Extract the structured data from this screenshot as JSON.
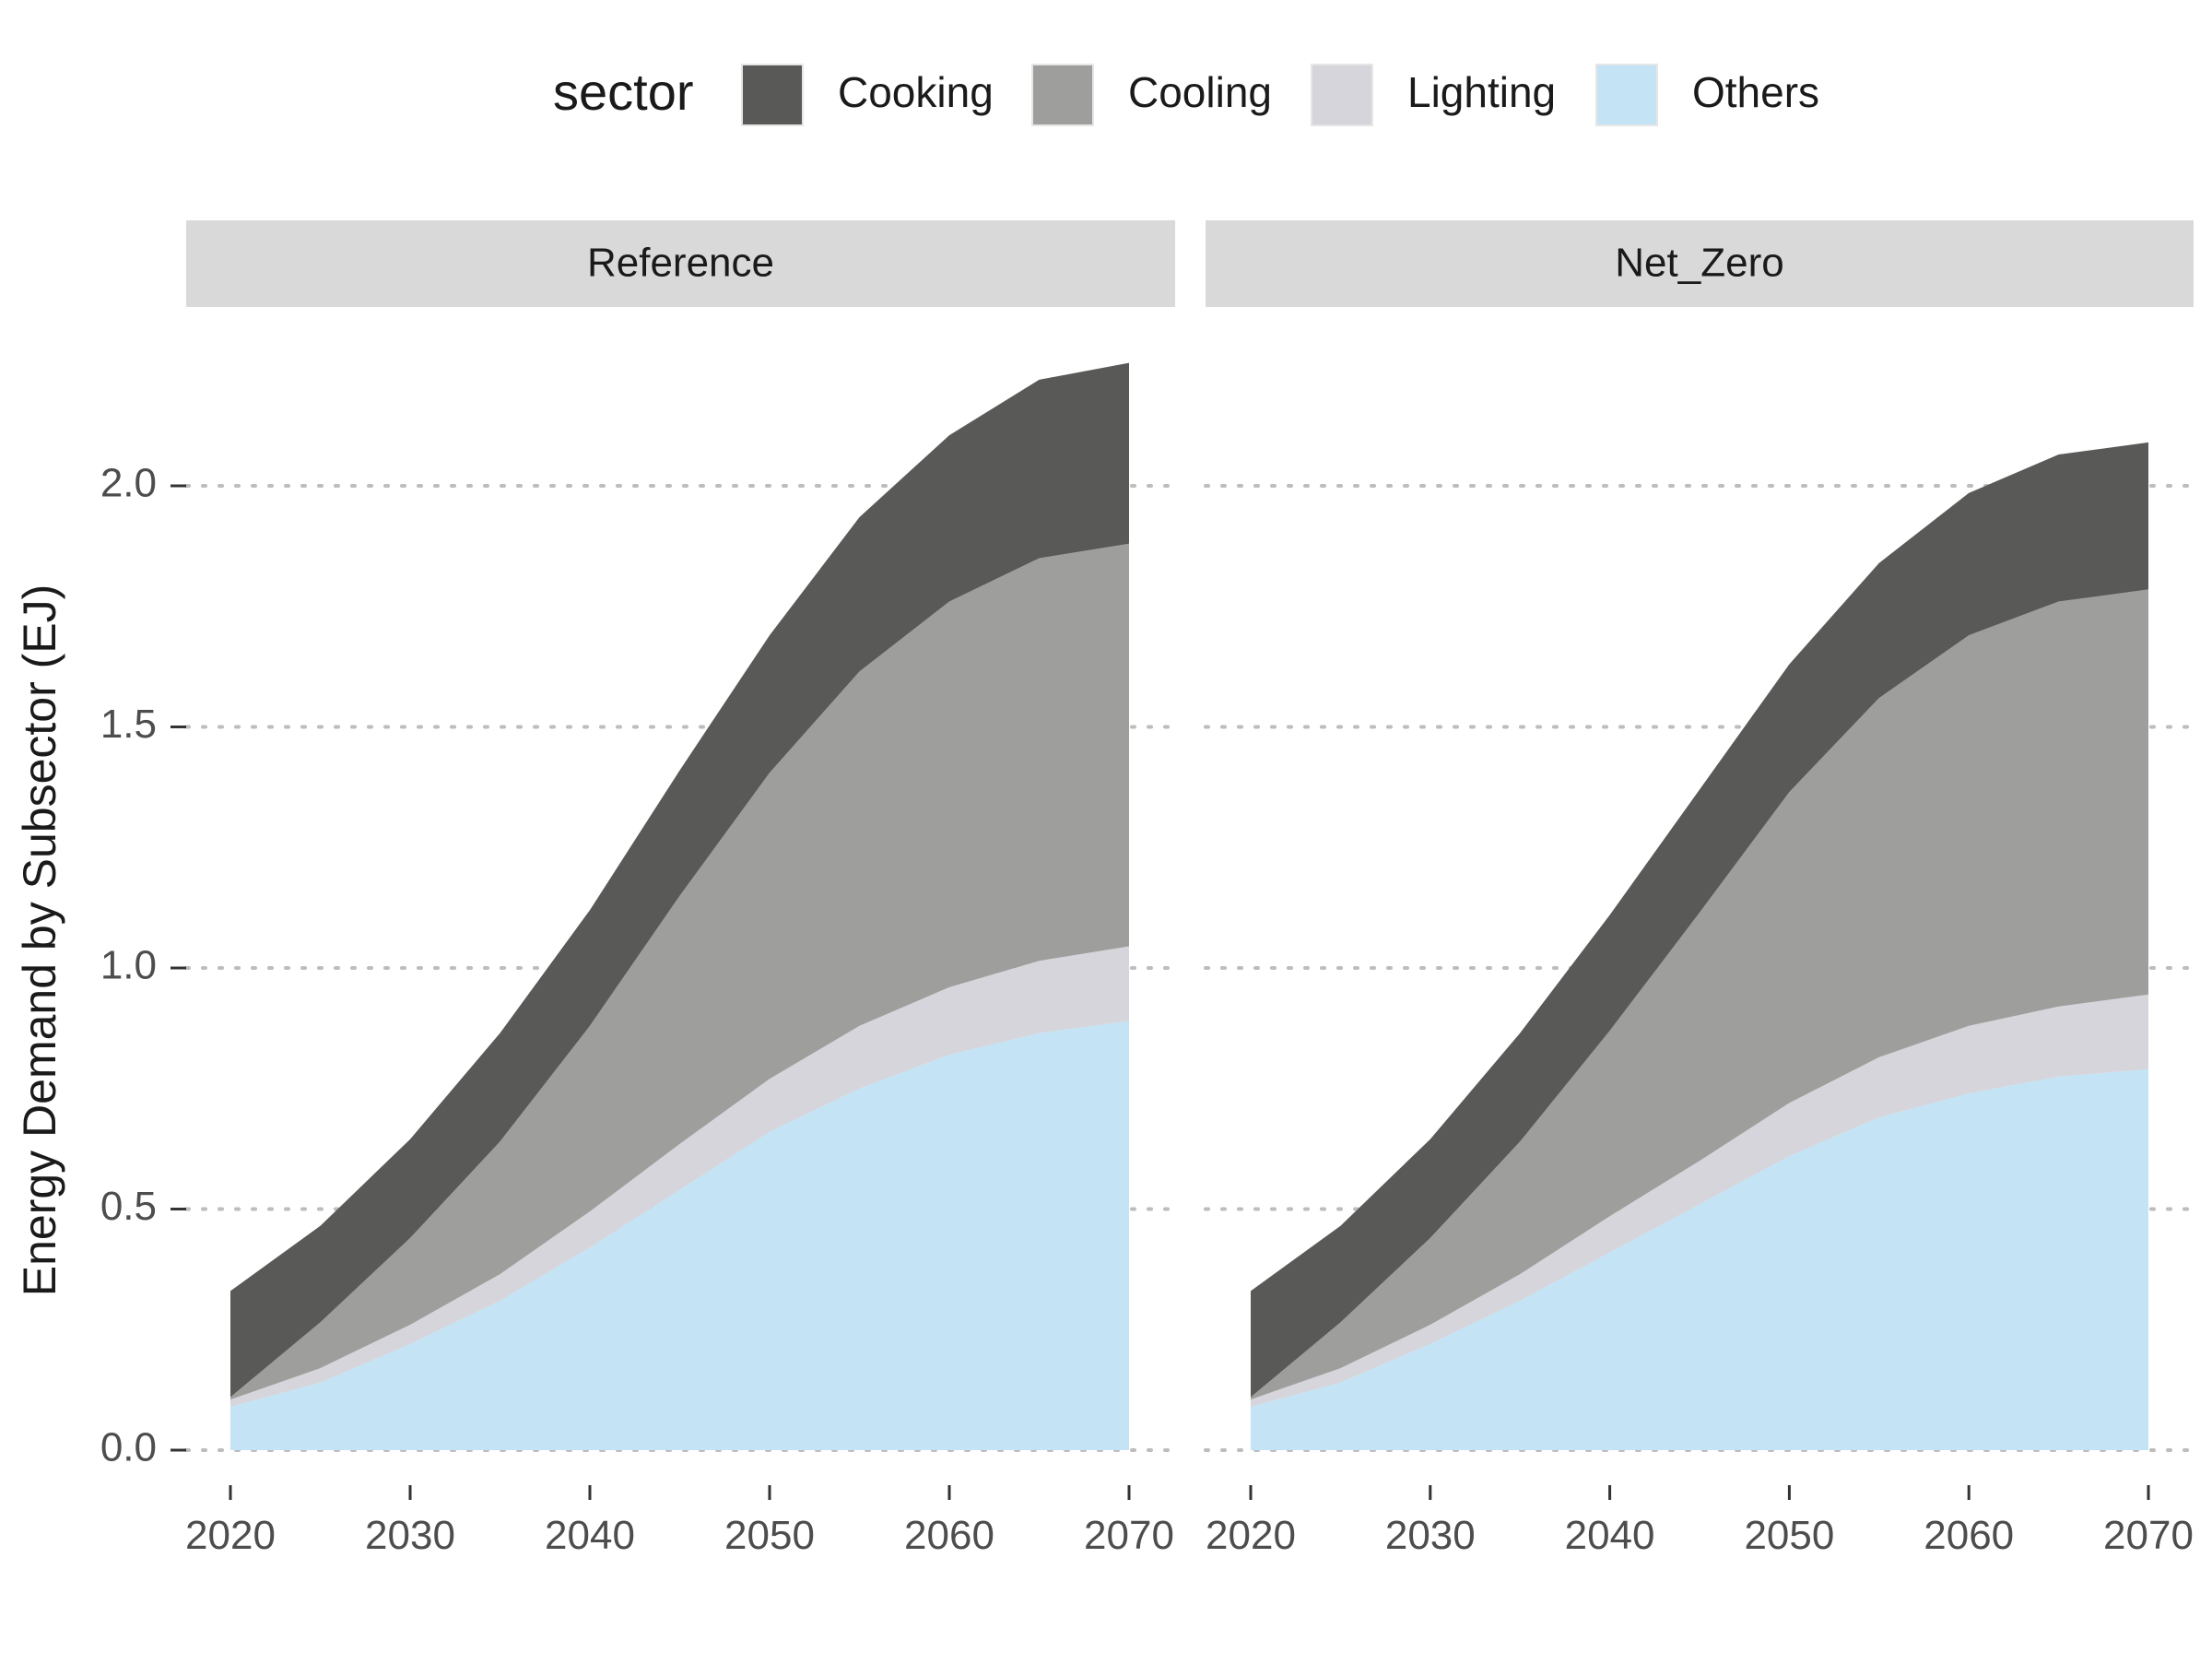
{
  "chart_data": {
    "type": "area",
    "stacked": true,
    "legend": {
      "title": "sector",
      "placement": "top",
      "entries": [
        {
          "label": "Cooking",
          "color": "#595957"
        },
        {
          "label": "Cooling",
          "color": "#9e9e9c"
        },
        {
          "label": "Lighting",
          "color": "#d5d5db"
        },
        {
          "label": "Others",
          "color": "#c4e3f4"
        }
      ]
    },
    "ylabel": "Energy Demand by Subsector (EJ)",
    "xlabel": "",
    "ylim": [
      0,
      2.25
    ],
    "yticks": [
      0.0,
      0.5,
      1.0,
      1.5,
      2.0
    ],
    "ytick_labels": [
      "0.0",
      "0.5",
      "1.0",
      "1.5",
      "2.0"
    ],
    "xlim": [
      2020,
      2070
    ],
    "xticks": [
      2020,
      2030,
      2040,
      2050,
      2060,
      2070
    ],
    "xtick_labels": [
      "2020",
      "2030",
      "2040",
      "2050",
      "2060",
      "2070"
    ],
    "grid": "horizontal dotted",
    "x": [
      2020,
      2025,
      2030,
      2035,
      2040,
      2045,
      2050,
      2055,
      2060,
      2065,
      2070
    ],
    "panels": [
      {
        "title": "Reference",
        "series": [
          {
            "name": "Others",
            "values": [
              0.09,
              0.14,
              0.22,
              0.31,
              0.42,
              0.54,
              0.66,
              0.75,
              0.82,
              0.865,
              0.89
            ]
          },
          {
            "name": "Lighting",
            "values": [
              0.015,
              0.03,
              0.04,
              0.055,
              0.075,
              0.095,
              0.11,
              0.13,
              0.14,
              0.15,
              0.155
            ]
          },
          {
            "name": "Cooling",
            "values": [
              0.005,
              0.095,
              0.18,
              0.275,
              0.385,
              0.515,
              0.635,
              0.735,
              0.8,
              0.835,
              0.835
            ]
          },
          {
            "name": "Cooking",
            "values": [
              0.22,
              0.2,
              0.205,
              0.225,
              0.24,
              0.26,
              0.285,
              0.32,
              0.345,
              0.37,
              0.375
            ]
          }
        ]
      },
      {
        "title": "Net_Zero",
        "series": [
          {
            "name": "Others",
            "values": [
              0.09,
              0.14,
              0.22,
              0.31,
              0.41,
              0.51,
              0.61,
              0.69,
              0.74,
              0.775,
              0.79
            ]
          },
          {
            "name": "Lighting",
            "values": [
              0.015,
              0.03,
              0.04,
              0.055,
              0.075,
              0.09,
              0.11,
              0.125,
              0.14,
              0.145,
              0.155
            ]
          },
          {
            "name": "Cooling",
            "values": [
              0.005,
              0.095,
              0.18,
              0.275,
              0.385,
              0.515,
              0.645,
              0.745,
              0.81,
              0.84,
              0.84
            ]
          },
          {
            "name": "Cooking",
            "values": [
              0.22,
              0.2,
              0.205,
              0.225,
              0.24,
              0.255,
              0.265,
              0.28,
              0.295,
              0.305,
              0.305
            ]
          }
        ]
      }
    ]
  }
}
